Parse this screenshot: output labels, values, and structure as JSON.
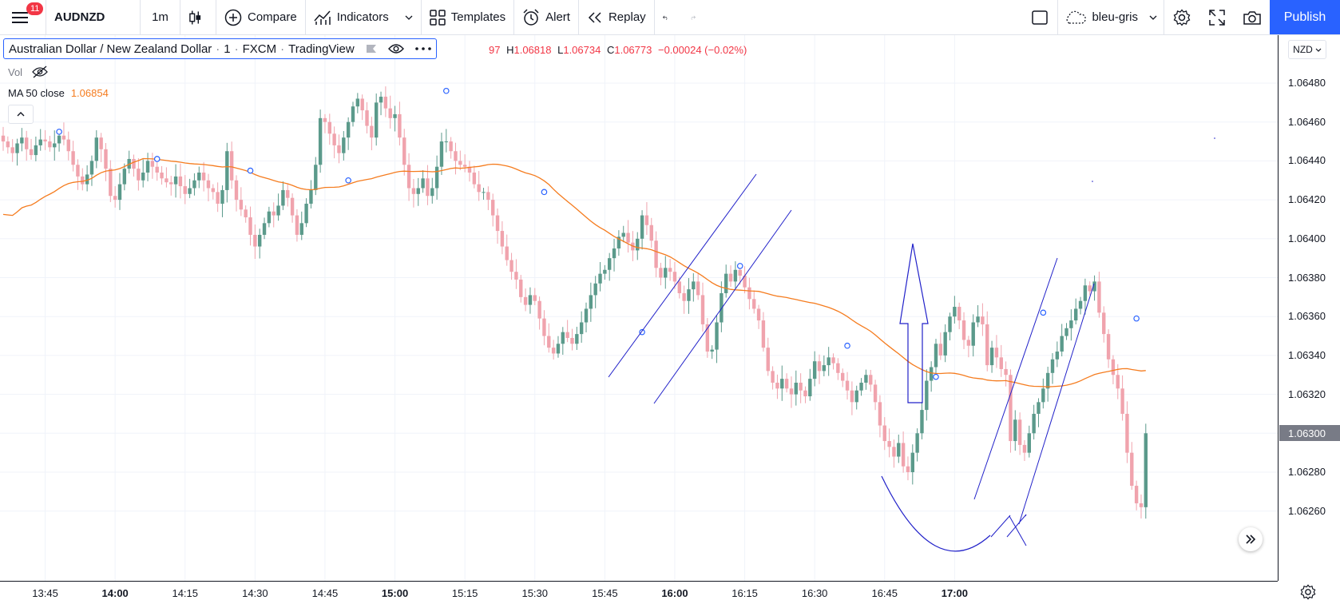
{
  "toolbar": {
    "notification_count": "11",
    "symbol": "AUDNZD",
    "interval": "1m",
    "compare_label": "Compare",
    "indicators_label": "Indicators",
    "templates_label": "Templates",
    "alert_label": "Alert",
    "replay_label": "Replay",
    "layout_name": "bleu-gris",
    "publish_label": "Publish"
  },
  "legend": {
    "title": "Australian Dollar / New Zealand Dollar",
    "interval": "1",
    "exchange": "FXCM",
    "source": "TradingView",
    "ohlc_prefix": "97",
    "high_label": "H",
    "high": "1.06818",
    "low_label": "L",
    "low": "1.06734",
    "close_label": "C",
    "close": "1.06773",
    "change": "−0.00024 (−0.02%)",
    "vol_label": "Vol",
    "ma_label": "MA 50 close",
    "ma_value": "1.06854"
  },
  "currency_selector": "NZD",
  "colors": {
    "up": "#5b9a8b",
    "down": "#f0a3ad",
    "ma": "#f57c1f",
    "drawings": "#2121c9",
    "accent": "#2962ff"
  },
  "price_axis": {
    "labels": [
      "1.06480",
      "1.06460",
      "1.06440",
      "1.06420",
      "1.06400",
      "1.06380",
      "1.06360",
      "1.06340",
      "1.06320",
      "1.06300",
      "1.06280",
      "1.06260"
    ],
    "current_price": "1.06300"
  },
  "time_axis": {
    "labels": [
      {
        "text": "13:45",
        "bold": false
      },
      {
        "text": "14:00",
        "bold": true
      },
      {
        "text": "14:15",
        "bold": false
      },
      {
        "text": "14:30",
        "bold": false
      },
      {
        "text": "14:45",
        "bold": false
      },
      {
        "text": "15:00",
        "bold": true
      },
      {
        "text": "15:15",
        "bold": false
      },
      {
        "text": "15:30",
        "bold": false
      },
      {
        "text": "15:45",
        "bold": false
      },
      {
        "text": "16:00",
        "bold": true
      },
      {
        "text": "16:15",
        "bold": false
      },
      {
        "text": "16:30",
        "bold": false
      },
      {
        "text": "16:45",
        "bold": false
      },
      {
        "text": "17:00",
        "bold": true
      }
    ]
  },
  "chart_data": {
    "type": "candlestick",
    "title": "",
    "x_range": [
      "13:36",
      "17:00"
    ],
    "y_range": [
      1.06248,
      1.065
    ],
    "grid": true,
    "close_series": [
      1.0645,
      1.06447,
      1.06444,
      1.06449,
      1.06452,
      1.06446,
      1.06443,
      1.06448,
      1.06451,
      1.0645,
      1.06447,
      1.06449,
      1.06453,
      1.06451,
      1.06445,
      1.06438,
      1.06432,
      1.06428,
      1.06433,
      1.0644,
      1.06452,
      1.06446,
      1.06436,
      1.06422,
      1.0642,
      1.06428,
      1.06436,
      1.06441,
      1.06436,
      1.0643,
      1.06434,
      1.0644,
      1.06437,
      1.06434,
      1.06431,
      1.06429,
      1.06428,
      1.06432,
      1.06427,
      1.06423,
      1.06426,
      1.0643,
      1.06434,
      1.0643,
      1.06426,
      1.06424,
      1.06418,
      1.06425,
      1.06445,
      1.0643,
      1.0642,
      1.06415,
      1.06411,
      1.06402,
      1.06396,
      1.06402,
      1.06408,
      1.06414,
      1.06412,
      1.06417,
      1.06425,
      1.06421,
      1.06412,
      1.06402,
      1.06408,
      1.06418,
      1.06425,
      1.06438,
      1.06462,
      1.0646,
      1.06454,
      1.06448,
      1.06444,
      1.06452,
      1.0646,
      1.06468,
      1.06472,
      1.06466,
      1.06458,
      1.06452,
      1.0647,
      1.06473,
      1.06467,
      1.06462,
      1.06464,
      1.06452,
      1.06438,
      1.06426,
      1.06423,
      1.06426,
      1.06431,
      1.06422,
      1.06426,
      1.06437,
      1.0645,
      1.0645,
      1.06445,
      1.0644,
      1.06438,
      1.06437,
      1.06434,
      1.06428,
      1.06424,
      1.06424,
      1.0642,
      1.06412,
      1.06404,
      1.06396,
      1.06389,
      1.06383,
      1.06379,
      1.0637,
      1.06366,
      1.06371,
      1.06368,
      1.06359,
      1.0635,
      1.06344,
      1.06341,
      1.06346,
      1.06352,
      1.06349,
      1.06346,
      1.06351,
      1.06357,
      1.06364,
      1.06371,
      1.06377,
      1.06382,
      1.06384,
      1.0639,
      1.06395,
      1.06401,
      1.06403,
      1.06398,
      1.06394,
      1.064,
      1.06412,
      1.06407,
      1.06399,
      1.06385,
      1.0638,
      1.06385,
      1.06383,
      1.06378,
      1.06372,
      1.06368,
      1.06374,
      1.06378,
      1.06371,
      1.06356,
      1.06342,
      1.06343,
      1.06357,
      1.06372,
      1.06382,
      1.06378,
      1.06384,
      1.06381,
      1.06375,
      1.06369,
      1.06364,
      1.06358,
      1.06344,
      1.06332,
      1.06326,
      1.06323,
      1.06328,
      1.06323,
      1.0632,
      1.06326,
      1.06322,
      1.06319,
      1.06328,
      1.06337,
      1.06332,
      1.06335,
      1.06339,
      1.06336,
      1.06331,
      1.06327,
      1.06322,
      1.06316,
      1.06322,
      1.06326,
      1.0633,
      1.06325,
      1.06316,
      1.06304,
      1.06296,
      1.06293,
      1.06288,
      1.06295,
      1.06283,
      1.0628,
      1.0629,
      1.063,
      1.06312,
      1.06327,
      1.06334,
      1.06346,
      1.0634,
      1.06352,
      1.0636,
      1.06365,
      1.06358,
      1.06348,
      1.06345,
      1.06357,
      1.0636,
      1.06356,
      1.06335,
      1.06344,
      1.06339,
      1.06333,
      1.0633,
      1.06296,
      1.06307,
      1.06294,
      1.0629,
      1.063,
      1.0631,
      1.06316,
      1.06323,
      1.06331,
      1.06338,
      1.06342,
      1.0635,
      1.06354,
      1.06358,
      1.06364,
      1.06368,
      1.06376,
      1.06373,
      1.06378,
      1.06362,
      1.06351,
      1.06338,
      1.0633,
      1.06323,
      1.0631,
      1.0629,
      1.06273,
      1.06264,
      1.06262,
      1.063
    ],
    "ma_series_name": "MA 50 close",
    "annotations": [
      "ascending channel ~15:20-15:35",
      "up arrow ~16:00",
      "ascending channel ~16:15-16:30",
      "curved line ~16:00-16:15"
    ]
  }
}
